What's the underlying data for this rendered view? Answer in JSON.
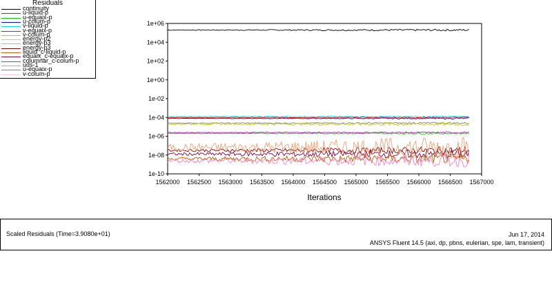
{
  "legend": {
    "title": "Residuals",
    "items": [
      {
        "label": "continuity",
        "color": "#000000"
      },
      {
        "label": "u-liquid-p",
        "color": "#ff0000"
      },
      {
        "label": "u-equaix-p",
        "color": "#00cc00"
      },
      {
        "label": "u-colum-p",
        "color": "#0000ff"
      },
      {
        "label": "v-liquid-p",
        "color": "#00e5e5"
      },
      {
        "label": "v-equaix-p",
        "color": "#cc00cc"
      },
      {
        "label": "v-colum-p",
        "color": "#c8c800"
      },
      {
        "label": "energy-p2",
        "color": "#e8c060"
      },
      {
        "label": "energy-p3",
        "color": "#f0a070"
      },
      {
        "label": "energy-p3",
        "color": "#8b0000"
      },
      {
        "label": "liquid_c-liquid-p",
        "color": "#c06000"
      },
      {
        "label": "equaix_c-equaix-p",
        "color": "#800040"
      },
      {
        "label": "columnar_c-colum-p",
        "color": "#a05030"
      },
      {
        "label": "uds-1",
        "color": "#ff80c0"
      },
      {
        "label": "u-equaix-p",
        "color": "#808080"
      },
      {
        "label": "v-colum-p",
        "color": "#ffd0d0"
      }
    ]
  },
  "chart_data": {
    "type": "line",
    "title": "Scaled Residuals",
    "xlabel": "Iterations",
    "ylabel": "",
    "xlim": [
      1562000,
      1567000
    ],
    "ylim_log10": [
      -10,
      6
    ],
    "x_ticks": [
      "1562000",
      "1562500",
      "1563000",
      "1563500",
      "1564000",
      "1564500",
      "1565000",
      "1565500",
      "1566000",
      "1566500",
      "1567000"
    ],
    "y_ticks": [
      "1e+06",
      "1e+04",
      "1e+02",
      "1e+00",
      "1e-02",
      "1e-04",
      "1e-06",
      "1e-08",
      "1e-10"
    ],
    "x_data_end": 1566800,
    "series": [
      {
        "name": "continuity",
        "color": "#000000",
        "log10": 5.3,
        "noise": 0.08
      },
      {
        "name": "v-liquid-p",
        "color": "#00e5e5",
        "log10": -3.9,
        "noise": 0.05
      },
      {
        "name": "u-liquid-p",
        "color": "#ff0000",
        "log10": -4.0,
        "noise": 0.05
      },
      {
        "name": "u-colum-p",
        "color": "#0000ff",
        "log10": -4.1,
        "noise": 0.05
      },
      {
        "name": "u-equaix-p",
        "color": "#808080",
        "log10": -4.6,
        "noise": 0.08
      },
      {
        "name": "v-colum-p",
        "color": "#c8c800",
        "log10": -4.7,
        "noise": 0.15
      },
      {
        "name": "v-equaix-p",
        "color": "#cc00cc",
        "log10": -5.6,
        "noise": 0.06
      },
      {
        "name": "u-equaix-p",
        "color": "#00cc00",
        "log10": -5.7,
        "noise": 0.06
      },
      {
        "name": "energy-p3",
        "color": "#8b0000",
        "log10": -7.5,
        "noise": 0.3
      },
      {
        "name": "equaix_c-equaix-p",
        "color": "#800040",
        "log10": -7.9,
        "noise": 0.35
      },
      {
        "name": "energy-p3",
        "color": "#f0a070",
        "log10": -7.2,
        "noise": 0.9
      },
      {
        "name": "liquid_c-liquid-p",
        "color": "#c06000",
        "log10": -8.4,
        "noise": 0.4
      },
      {
        "name": "uds-1",
        "color": "#ff80c0",
        "log10": -8.6,
        "noise": 0.5
      }
    ]
  },
  "footer": {
    "left": "Scaled Residuals  (Time=3.9080e+01)",
    "date": "Jun 17, 2014",
    "solver": "ANSYS Fluent 14.5 (axi, dp, pbns, eulerian, spe, lam, transient)"
  }
}
